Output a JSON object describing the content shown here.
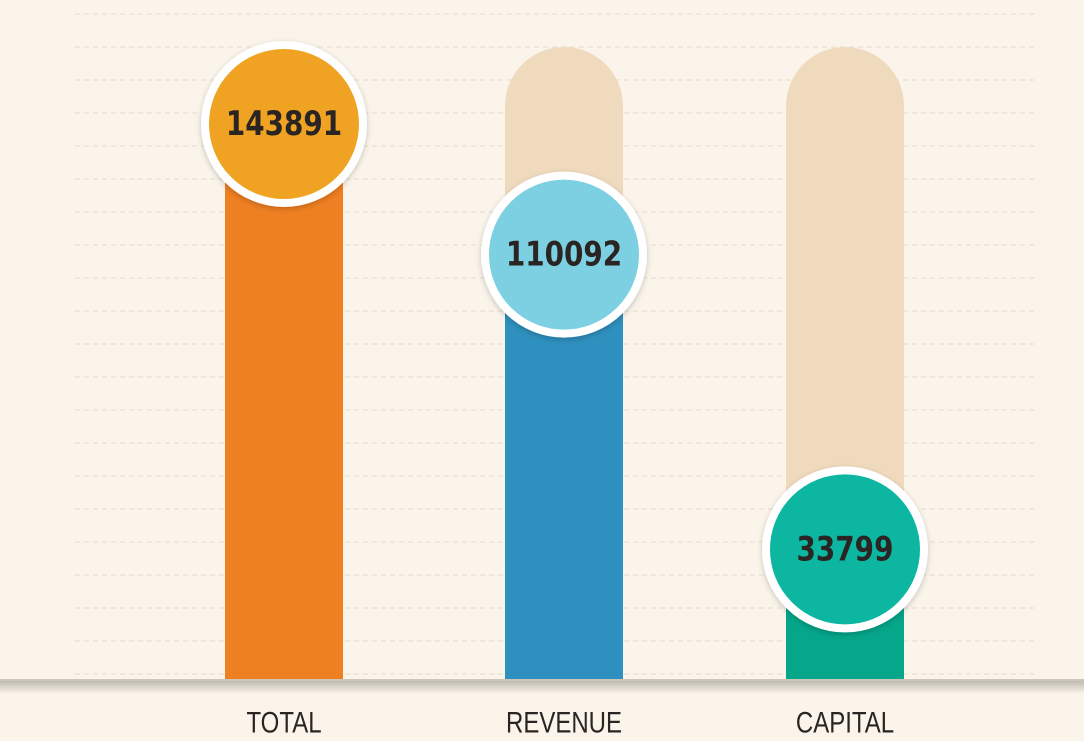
{
  "chart_data": {
    "type": "bar",
    "categories": [
      "TOTAL",
      "REVENUE",
      "CAPITAL"
    ],
    "values": [
      143891,
      110092,
      33799
    ],
    "colors": [
      "#ef8022",
      "#2e90be",
      "#05a68a"
    ],
    "badge_colors": [
      "#f0a321",
      "#7bd0e2",
      "#07b6a0"
    ],
    "track_color": "#f0dabd"
  }
}
